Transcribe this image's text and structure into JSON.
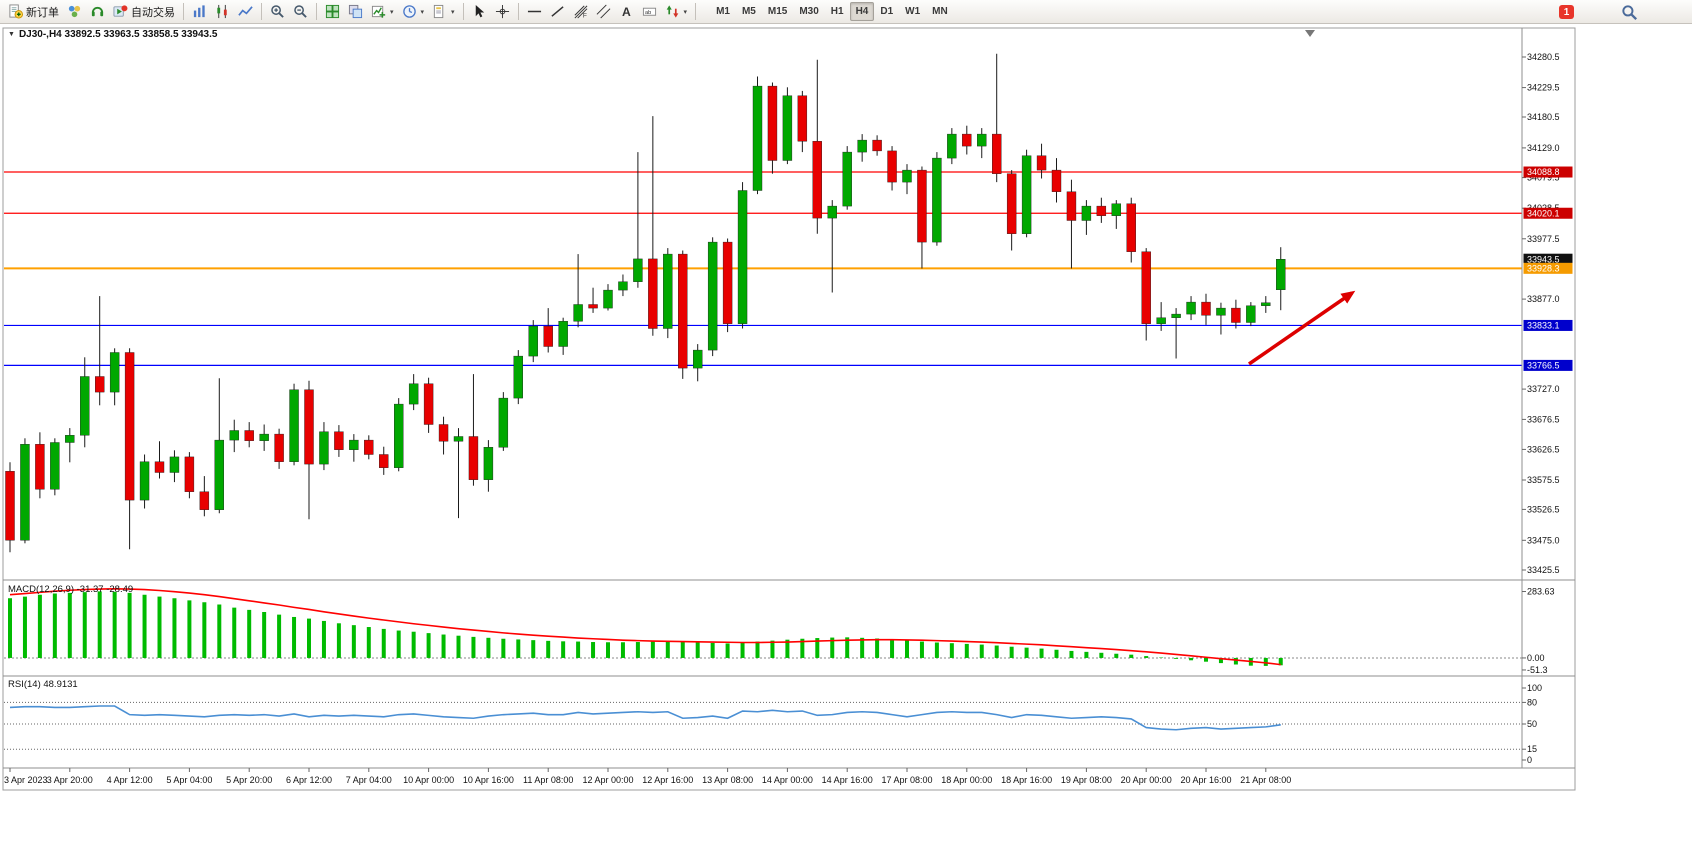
{
  "toolbar": {
    "items": [
      {
        "name": "new-order",
        "icon": "new-order",
        "label": "新订单"
      },
      {
        "name": "market-watch",
        "icon": "market-watch"
      },
      {
        "name": "sound-alerts",
        "icon": "headset"
      },
      {
        "name": "auto-trading",
        "icon": "auto-trading",
        "label": "自动交易"
      },
      {
        "type": "sep"
      },
      {
        "name": "chart-bars",
        "icon": "chart-bars"
      },
      {
        "name": "chart-candles",
        "icon": "chart-candles"
      },
      {
        "name": "chart-line",
        "icon": "chart-line"
      },
      {
        "type": "sep"
      },
      {
        "name": "zoom-in",
        "icon": "zoom-in"
      },
      {
        "name": "zoom-out",
        "icon": "zoom-out"
      },
      {
        "type": "sep"
      },
      {
        "name": "tile-windows",
        "icon": "tile-windows"
      },
      {
        "name": "cascade-windows",
        "icon": "cascade-windows"
      },
      {
        "name": "new-chart",
        "icon": "new-chart",
        "dropdown": true
      },
      {
        "name": "periods",
        "icon": "clock",
        "dropdown": true
      },
      {
        "name": "templates",
        "icon": "templates",
        "dropdown": true
      },
      {
        "type": "sep"
      },
      {
        "name": "cursor",
        "icon": "cursor"
      },
      {
        "name": "crosshair",
        "icon": "crosshair"
      },
      {
        "type": "sep"
      },
      {
        "name": "horizontal-line",
        "icon": "hline"
      },
      {
        "name": "trendline",
        "icon": "trendline"
      },
      {
        "name": "fibonacci",
        "icon": "fibonacci"
      },
      {
        "name": "equidistant-channel",
        "icon": "channel"
      },
      {
        "name": "text",
        "icon": "text"
      },
      {
        "name": "text-label",
        "icon": "text-label"
      },
      {
        "name": "arrows",
        "icon": "arrows",
        "dropdown": true
      },
      {
        "type": "sep"
      }
    ],
    "timeframes": [
      "M1",
      "M5",
      "M15",
      "M30",
      "H1",
      "H4",
      "D1",
      "W1",
      "MN"
    ],
    "active_timeframe": "H4",
    "notification_count": "1"
  },
  "chart": {
    "title": "DJ30-,H4 33892.5 33963.5 33858.5 33943.5"
  },
  "chart_data": {
    "type": "candlestick",
    "symbol": "DJ30-",
    "timeframe": "H4",
    "ohlc_display": {
      "open": 33892.5,
      "high": 33963.5,
      "low": 33858.5,
      "close": 33943.5
    },
    "colors": {
      "bull": "#00a800",
      "bear": "#e80000",
      "wick": "#1a1a1a",
      "macd_hist": "#00bb00",
      "macd_signal": "#ff0000",
      "rsi_line": "#4a8fd4",
      "resistance_line": "#ff0000",
      "support_line": "#0000ff",
      "current_line": "#ffa000",
      "arrow": "#dd0000"
    },
    "price_axis": {
      "min": 33425.5,
      "max": 34280.5,
      "labels": [
        34280.5,
        34229.5,
        34180.5,
        34129.0,
        34079.5,
        34028.5,
        33977.5,
        33877.0,
        33727.0,
        33676.5,
        33626.5,
        33575.5,
        33526.5,
        33475.0,
        33425.5
      ]
    },
    "price_tags": [
      {
        "price": 34088.8,
        "label": "34088.8",
        "type": "resistance",
        "bg": "#cc0000",
        "line": true,
        "line_color": "#ff0000",
        "line_width": 1.2
      },
      {
        "price": 34020.1,
        "label": "34020.1",
        "type": "resistance",
        "bg": "#cc0000",
        "line": true,
        "line_color": "#ff0000",
        "line_width": 1.2
      },
      {
        "price": 33943.5,
        "label": "33943.5",
        "type": "last-price",
        "bg": "#111111",
        "line": false,
        "line_color": "#111111",
        "line_width": 1
      },
      {
        "price": 33928.3,
        "label": "33928.3",
        "type": "current-line",
        "bg": "#f59b00",
        "line": true,
        "line_color": "#ffa000",
        "line_width": 2
      },
      {
        "price": 33833.1,
        "label": "33833.1",
        "type": "support",
        "bg": "#0000cc",
        "line": true,
        "line_color": "#0000ff",
        "line_width": 1.2
      },
      {
        "price": 33766.5,
        "label": "33766.5",
        "type": "support",
        "bg": "#0000cc",
        "line": true,
        "line_color": "#0000ff",
        "line_width": 1.2
      }
    ],
    "candles": [
      [
        33590,
        33605,
        33455,
        33475
      ],
      [
        33475,
        33645,
        33470,
        33635
      ],
      [
        33635,
        33655,
        33545,
        33560
      ],
      [
        33560,
        33645,
        33550,
        33638
      ],
      [
        33638,
        33662,
        33605,
        33650
      ],
      [
        33650,
        33780,
        33630,
        33748
      ],
      [
        33748,
        33882,
        33700,
        33722
      ],
      [
        33722,
        33795,
        33700,
        33788
      ],
      [
        33788,
        33795,
        33460,
        33542
      ],
      [
        33542,
        33618,
        33528,
        33606
      ],
      [
        33606,
        33640,
        33578,
        33588
      ],
      [
        33588,
        33625,
        33572,
        33614
      ],
      [
        33614,
        33622,
        33545,
        33556
      ],
      [
        33556,
        33582,
        33515,
        33526
      ],
      [
        33526,
        33745,
        33520,
        33642
      ],
      [
        33642,
        33676,
        33622,
        33658
      ],
      [
        33658,
        33672,
        33630,
        33641
      ],
      [
        33641,
        33668,
        33624,
        33652
      ],
      [
        33652,
        33661,
        33594,
        33606
      ],
      [
        33606,
        33736,
        33600,
        33726
      ],
      [
        33726,
        33741,
        33510,
        33602
      ],
      [
        33602,
        33672,
        33592,
        33656
      ],
      [
        33656,
        33667,
        33614,
        33626
      ],
      [
        33626,
        33652,
        33606,
        33642
      ],
      [
        33642,
        33650,
        33610,
        33618
      ],
      [
        33618,
        33631,
        33584,
        33596
      ],
      [
        33596,
        33712,
        33590,
        33702
      ],
      [
        33702,
        33752,
        33692,
        33736
      ],
      [
        33736,
        33746,
        33654,
        33668
      ],
      [
        33668,
        33681,
        33618,
        33640
      ],
      [
        33640,
        33662,
        33512,
        33648
      ],
      [
        33648,
        33752,
        33566,
        33576
      ],
      [
        33576,
        33642,
        33556,
        33630
      ],
      [
        33630,
        33722,
        33624,
        33712
      ],
      [
        33712,
        33792,
        33702,
        33782
      ],
      [
        33782,
        33842,
        33772,
        33832
      ],
      [
        33832,
        33862,
        33788,
        33798
      ],
      [
        33798,
        33846,
        33784,
        33840
      ],
      [
        33840,
        33952,
        33830,
        33868
      ],
      [
        33868,
        33896,
        33854,
        33862
      ],
      [
        33862,
        33902,
        33858,
        33892
      ],
      [
        33892,
        33918,
        33882,
        33906
      ],
      [
        33906,
        34122,
        33896,
        33944
      ],
      [
        33944,
        34182,
        33816,
        33828
      ],
      [
        33828,
        33962,
        33812,
        33952
      ],
      [
        33952,
        33958,
        33744,
        33762
      ],
      [
        33762,
        33802,
        33740,
        33792
      ],
      [
        33792,
        33980,
        33782,
        33972
      ],
      [
        33972,
        33978,
        33822,
        33836
      ],
      [
        33836,
        34072,
        33828,
        34058
      ],
      [
        34058,
        34248,
        34052,
        34232
      ],
      [
        34232,
        34238,
        34086,
        34108
      ],
      [
        34108,
        34230,
        34102,
        34216
      ],
      [
        34216,
        34224,
        34122,
        34140
      ],
      [
        34140,
        34276,
        33986,
        34012
      ],
      [
        34012,
        34042,
        33888,
        34032
      ],
      [
        34032,
        34132,
        34026,
        34122
      ],
      [
        34122,
        34152,
        34106,
        34142
      ],
      [
        34142,
        34150,
        34116,
        34124
      ],
      [
        34124,
        34132,
        34058,
        34072
      ],
      [
        34072,
        34102,
        34052,
        34092
      ],
      [
        34092,
        34098,
        33928,
        33972
      ],
      [
        33972,
        34122,
        33966,
        34112
      ],
      [
        34112,
        34162,
        34102,
        34152
      ],
      [
        34152,
        34166,
        34118,
        34132
      ],
      [
        34132,
        34162,
        34112,
        34152
      ],
      [
        34152,
        34286,
        34072,
        34086
      ],
      [
        34086,
        34092,
        33958,
        33986
      ],
      [
        33986,
        34126,
        33980,
        34116
      ],
      [
        34116,
        34136,
        34078,
        34092
      ],
      [
        34092,
        34112,
        34038,
        34056
      ],
      [
        34056,
        34076,
        33928,
        34008
      ],
      [
        34008,
        34042,
        33984,
        34032
      ],
      [
        34032,
        34046,
        34004,
        34016
      ],
      [
        34016,
        34042,
        33994,
        34036
      ],
      [
        34036,
        34046,
        33938,
        33956
      ],
      [
        33956,
        33962,
        33808,
        33836
      ],
      [
        33836,
        33872,
        33824,
        33846
      ],
      [
        33846,
        33862,
        33778,
        33852
      ],
      [
        33852,
        33882,
        33842,
        33872
      ],
      [
        33872,
        33886,
        33834,
        33850
      ],
      [
        33850,
        33871,
        33818,
        33862
      ],
      [
        33862,
        33876,
        33828,
        33838
      ],
      [
        33838,
        33872,
        33832,
        33866
      ],
      [
        33866,
        33882,
        33854,
        33871
      ],
      [
        33892.5,
        33963.5,
        33858.5,
        33943.5
      ]
    ],
    "time_label_indices": [
      0,
      4,
      8,
      12,
      16,
      20,
      24,
      28,
      32,
      36,
      40,
      44,
      48,
      52,
      56,
      60,
      64,
      68,
      72,
      76,
      80,
      84
    ],
    "time_labels": [
      "3 Apr 2023",
      "3 Apr 20:00",
      "4 Apr 12:00",
      "5 Apr 04:00",
      "5 Apr 20:00",
      "6 Apr 12:00",
      "7 Apr 04:00",
      "10 Apr 00:00",
      "10 Apr 16:00",
      "11 Apr 08:00",
      "12 Apr 00:00",
      "12 Apr 16:00",
      "13 Apr 08:00",
      "14 Apr 00:00",
      "14 Apr 16:00",
      "17 Apr 08:00",
      "18 Apr 00:00",
      "18 Apr 16:00",
      "19 Apr 08:00",
      "20 Apr 00:00",
      "20 Apr 16:00",
      "21 Apr 08:00"
    ],
    "macd": {
      "label": "MACD(12,26,9) -31.37 -28.49",
      "axis_labels": [
        "283.63",
        "0.00",
        "-51.3"
      ],
      "axis_values": [
        283.63,
        0.0,
        -51.3
      ],
      "range": [
        320,
        -60
      ],
      "histogram": [
        255,
        262,
        270,
        275,
        278,
        281,
        284,
        282,
        278,
        270,
        262,
        255,
        246,
        238,
        228,
        215,
        205,
        196,
        185,
        175,
        168,
        158,
        148,
        140,
        132,
        124,
        117,
        112,
        106,
        100,
        95,
        90,
        86,
        82,
        79,
        76,
        73,
        71,
        70,
        68,
        67,
        67,
        68,
        70,
        71,
        69,
        66,
        64,
        62,
        66,
        70,
        74,
        78,
        82,
        85,
        87,
        88,
        86,
        83,
        79,
        75,
        70,
        66,
        63,
        60,
        57,
        53,
        48,
        44,
        40,
        35,
        30,
        26,
        22,
        18,
        14,
        8,
        2,
        -4,
        -10,
        -16,
        -22,
        -28,
        -33,
        -34,
        -31.37
      ],
      "signal": [
        270,
        275,
        280,
        285,
        289,
        292,
        294,
        295,
        294,
        292,
        288,
        283,
        277,
        270,
        262,
        253,
        244,
        235,
        226,
        216,
        207,
        197,
        188,
        179,
        170,
        162,
        154,
        146,
        139,
        132,
        125,
        119,
        113,
        107,
        102,
        97,
        93,
        89,
        85,
        82,
        79,
        76,
        74,
        72,
        71,
        70,
        69,
        68,
        67,
        66,
        66,
        67,
        68,
        70,
        72,
        74,
        76,
        77,
        78,
        78,
        77,
        76,
        74,
        72,
        70,
        68,
        65,
        62,
        59,
        56,
        52,
        48,
        44,
        40,
        36,
        31,
        26,
        21,
        15,
        9,
        3,
        -3,
        -9,
        -15,
        -21,
        -28.49
      ]
    },
    "rsi": {
      "label": "RSI(14) 48.9131",
      "axis_labels": [
        "100",
        "80",
        "50",
        "15",
        "0"
      ],
      "axis_values": [
        100,
        80,
        50,
        15,
        0
      ],
      "levels": [
        80,
        50,
        15
      ],
      "values": [
        73,
        74,
        74,
        73,
        73,
        74,
        75,
        75,
        63,
        62,
        63,
        62,
        61,
        60,
        62,
        63,
        62,
        63,
        61,
        64,
        60,
        62,
        61,
        62,
        61,
        60,
        63,
        64,
        62,
        60,
        59,
        58,
        61,
        63,
        64,
        65,
        63,
        63,
        66,
        64,
        65,
        66,
        67,
        66,
        67,
        58,
        59,
        61,
        58,
        68,
        67,
        69,
        67,
        68,
        62,
        63,
        66,
        67,
        66,
        63,
        60,
        63,
        66,
        67,
        66,
        66,
        63,
        59,
        63,
        62,
        60,
        58,
        59,
        60,
        59,
        57,
        45,
        43,
        42,
        44,
        45,
        43,
        44,
        45,
        46,
        48.91
      ]
    },
    "arrow": {
      "from": [
        1249,
        364
      ],
      "to": [
        1352,
        293
      ],
      "color": "#dd0000"
    }
  }
}
